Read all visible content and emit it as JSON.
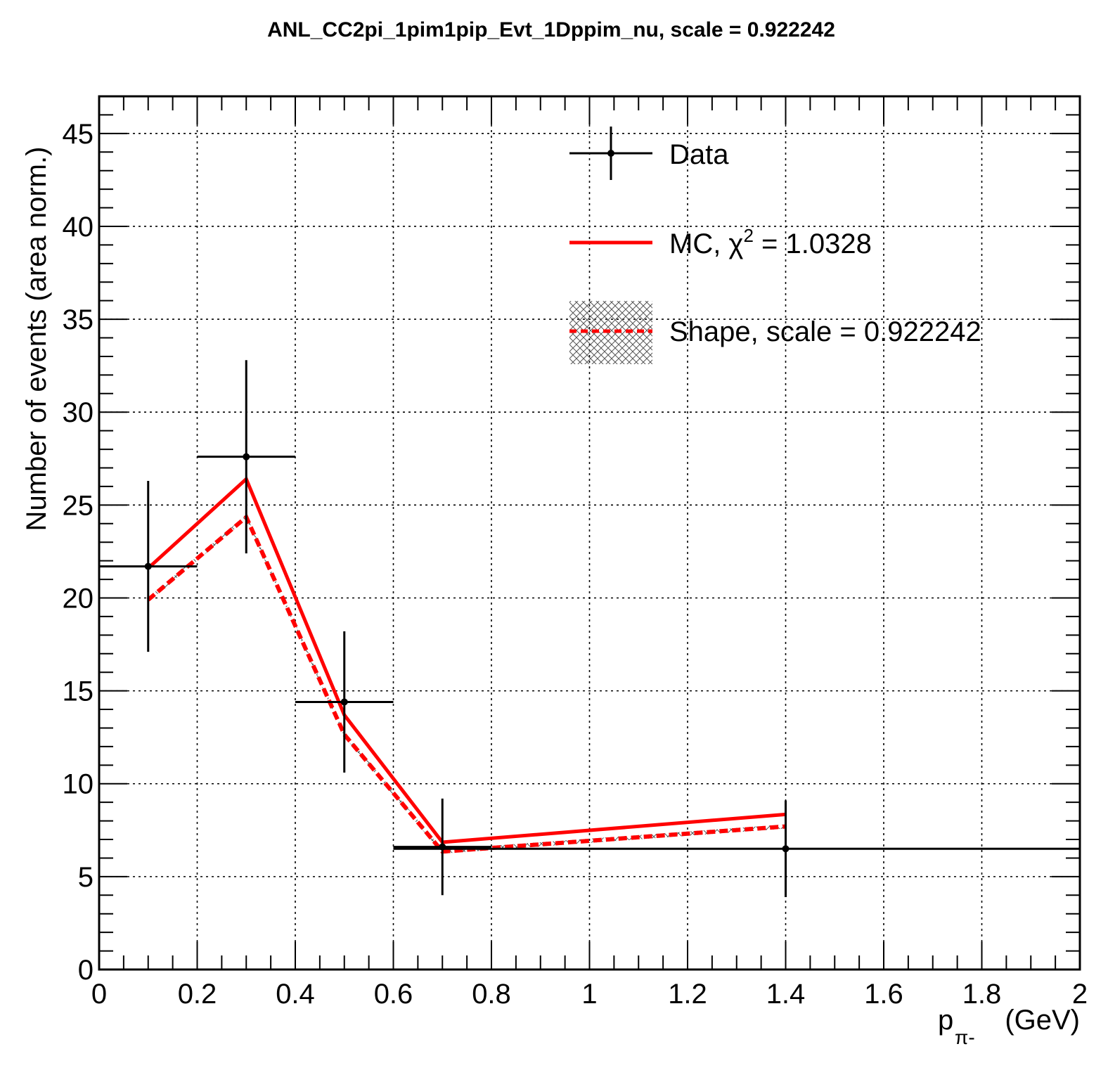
{
  "chart_data": {
    "type": "line",
    "title": "ANL_CC2pi_1pim1pip_Evt_1Dppim_nu, scale = 0.922242",
    "xlabel_main": "p",
    "xlabel_sub": "π-",
    "xlabel_unit": "(GeV)",
    "ylabel": "Number of events (area norm.)",
    "xlim": [
      0,
      2
    ],
    "ylim": [
      0,
      47
    ],
    "x_ticks": [
      0,
      0.2,
      0.4,
      0.6,
      0.8,
      1,
      1.2,
      1.4,
      1.6,
      1.8,
      2
    ],
    "x_tick_labels": [
      "0",
      "0.2",
      "0.4",
      "0.6",
      "0.8",
      "1",
      "1.2",
      "1.4",
      "1.6",
      "1.8",
      "2"
    ],
    "y_ticks": [
      0,
      5,
      10,
      15,
      20,
      25,
      30,
      35,
      40,
      45
    ],
    "y_tick_labels": [
      "0",
      "5",
      "10",
      "15",
      "20",
      "25",
      "30",
      "35",
      "40",
      "45"
    ],
    "grid": true,
    "legend_position": "top-right",
    "series": [
      {
        "name": "Data",
        "kind": "errorbar",
        "color": "#000000",
        "x": [
          0.1,
          0.3,
          0.5,
          0.7,
          1.4
        ],
        "xerr_low": [
          0.1,
          0.1,
          0.1,
          0.1,
          0.8
        ],
        "xerr_high": [
          0.1,
          0.1,
          0.1,
          0.1,
          0.6
        ],
        "y": [
          21.7,
          27.6,
          14.4,
          6.6,
          6.5
        ],
        "yerr": [
          4.6,
          5.2,
          3.8,
          2.6,
          2.6
        ]
      },
      {
        "name": "MC, χ² = 1.0328",
        "kind": "line",
        "color": "#ff0000",
        "x": [
          0.1,
          0.3,
          0.5,
          0.7,
          1.4
        ],
        "y": [
          21.6,
          26.4,
          13.7,
          6.85,
          8.35
        ]
      },
      {
        "name": "Shape, scale = 0.922242",
        "kind": "dashed-line-band",
        "color": "#ff0000",
        "x": [
          0.1,
          0.3,
          0.5,
          0.7,
          1.4
        ],
        "y": [
          19.9,
          24.35,
          12.65,
          6.35,
          7.7
        ]
      }
    ]
  },
  "legend": {
    "data_label": "Data",
    "mc_label": "MC, χ",
    "mc_sup": "2",
    "mc_value": " = 1.0328",
    "shape_label": "Shape, scale = 0.922242"
  }
}
